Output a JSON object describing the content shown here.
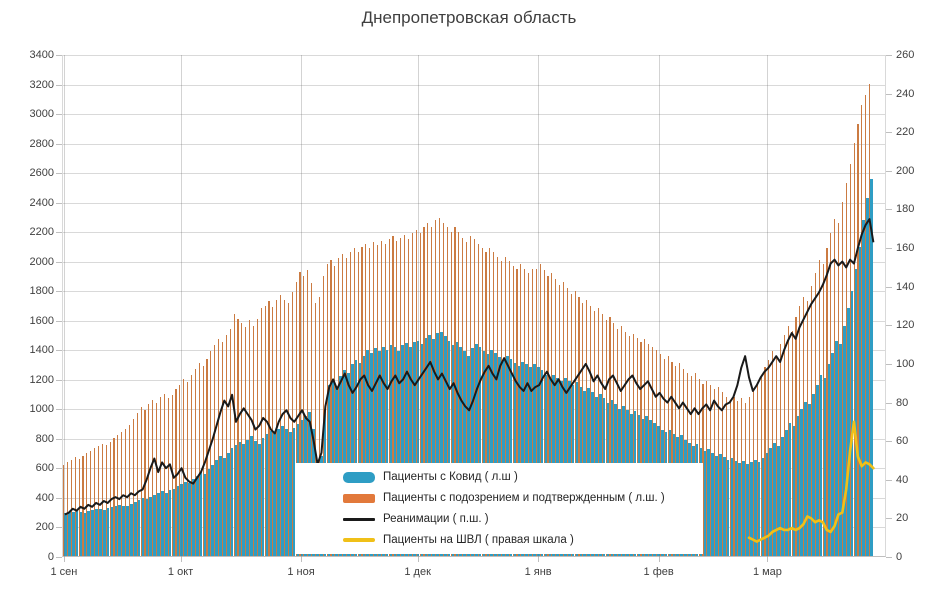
{
  "chart_data": {
    "type": "combo",
    "title": "Днепропетровская область",
    "slots": 212,
    "left_axis": {
      "min": 0,
      "max": 3400,
      "step": 200
    },
    "right_axis": {
      "min": 0,
      "max": 260,
      "step": 20
    },
    "x_ticks": [
      {
        "day": 0,
        "label": "1 сен"
      },
      {
        "day": 30,
        "label": "1 окт"
      },
      {
        "day": 61,
        "label": "1 ноя"
      },
      {
        "day": 91,
        "label": "1 дек"
      },
      {
        "day": 122,
        "label": "1 янв"
      },
      {
        "day": 153,
        "label": "1 фев"
      },
      {
        "day": 181,
        "label": "1 мар"
      }
    ],
    "style": {
      "grid_color": "#d9d9d9",
      "tick_color": "#bfbfbf",
      "axis_text_color": "#404040",
      "month_line_color": "rgba(110,110,110,0.30)"
    },
    "series": [
      {
        "name": "Пациенты с Ковид ( л.ш )",
        "type": "bar",
        "axis": "left",
        "color": "#2e9dc4",
        "start_day": 0,
        "values": [
          292,
          296,
          301,
          305,
          298,
          295,
          308,
          315,
          322,
          318,
          312,
          325,
          333,
          340,
          348,
          342,
          338,
          355,
          368,
          380,
          392,
          385,
          398,
          412,
          425,
          438,
          430,
          445,
          458,
          472,
          490,
          505,
          498,
          520,
          545,
          570,
          560,
          590,
          620,
          650,
          680,
          665,
          700,
          730,
          755,
          775,
          760,
          790,
          815,
          780,
          760,
          800,
          830,
          850,
          835,
          860,
          880,
          865,
          840,
          870,
          895,
          920,
          950,
          975,
          860,
          640,
          680,
          1000,
          1160,
          1190,
          1150,
          1220,
          1265,
          1240,
          1300,
          1330,
          1310,
          1360,
          1400,
          1380,
          1410,
          1390,
          1420,
          1400,
          1430,
          1420,
          1390,
          1430,
          1445,
          1420,
          1450,
          1460,
          1440,
          1480,
          1500,
          1475,
          1515,
          1520,
          1490,
          1460,
          1430,
          1450,
          1420,
          1390,
          1360,
          1410,
          1440,
          1420,
          1390,
          1370,
          1400,
          1380,
          1350,
          1330,
          1360,
          1340,
          1310,
          1290,
          1320,
          1300,
          1280,
          1305,
          1280,
          1260,
          1230,
          1210,
          1230,
          1210,
          1190,
          1210,
          1185,
          1160,
          1180,
          1150,
          1120,
          1140,
          1110,
          1080,
          1100,
          1070,
          1040,
          1060,
          1030,
          1000,
          1020,
          990,
          965,
          985,
          955,
          930,
          950,
          920,
          900,
          880,
          858,
          840,
          855,
          828,
          805,
          820,
          790,
          768,
          748,
          762,
          735,
          712,
          726,
          700,
          682,
          695,
          670,
          655,
          665,
          645,
          630,
          642,
          622,
          635,
          650,
          640,
          665,
          700,
          730,
          765,
          745,
          810,
          855,
          900,
          880,
          950,
          1000,
          1045,
          1030,
          1100,
          1160,
          1230,
          1210,
          1300,
          1380,
          1460,
          1440,
          1560,
          1680,
          1800,
          1950,
          2100,
          2280,
          2430,
          2560
        ]
      },
      {
        "name": "Пациенты с подозрением и подтвержденным ( л.ш. )",
        "type": "thin-bar",
        "axis": "left",
        "color": "#cb7b42",
        "start_day": 0,
        "values": [
          620,
          640,
          655,
          670,
          660,
          680,
          700,
          715,
          730,
          745,
          760,
          750,
          775,
          800,
          820,
          840,
          860,
          890,
          930,
          970,
          1010,
          990,
          1030,
          1060,
          1040,
          1080,
          1100,
          1070,
          1090,
          1130,
          1160,
          1200,
          1180,
          1230,
          1270,
          1310,
          1290,
          1340,
          1390,
          1430,
          1470,
          1450,
          1500,
          1540,
          1640,
          1610,
          1580,
          1555,
          1600,
          1560,
          1610,
          1680,
          1700,
          1730,
          1690,
          1740,
          1770,
          1740,
          1720,
          1790,
          1860,
          1930,
          1900,
          1940,
          1850,
          1720,
          1760,
          1900,
          1980,
          2010,
          1970,
          2020,
          2050,
          2020,
          2060,
          2090,
          2060,
          2100,
          2120,
          2090,
          2130,
          2110,
          2140,
          2120,
          2150,
          2170,
          2140,
          2160,
          2180,
          2150,
          2190,
          2210,
          2190,
          2230,
          2260,
          2230,
          2280,
          2295,
          2260,
          2230,
          2200,
          2230,
          2200,
          2160,
          2130,
          2170,
          2150,
          2120,
          2090,
          2060,
          2090,
          2060,
          2030,
          2000,
          2030,
          2000,
          1970,
          1950,
          1980,
          1950,
          1920,
          1950,
          1950,
          1980,
          1940,
          1900,
          1920,
          1880,
          1840,
          1860,
          1820,
          1780,
          1800,
          1760,
          1720,
          1740,
          1700,
          1660,
          1680,
          1640,
          1600,
          1620,
          1580,
          1540,
          1560,
          1520,
          1490,
          1510,
          1480,
          1450,
          1470,
          1440,
          1415,
          1400,
          1370,
          1340,
          1360,
          1320,
          1290,
          1310,
          1270,
          1240,
          1220,
          1240,
          1200,
          1170,
          1190,
          1160,
          1130,
          1150,
          1110,
          1080,
          1060,
          1080,
          1050,
          1070,
          1040,
          1080,
          1130,
          1170,
          1230,
          1280,
          1330,
          1390,
          1360,
          1440,
          1500,
          1560,
          1530,
          1620,
          1700,
          1760,
          1730,
          1830,
          1920,
          2010,
          1980,
          2090,
          2190,
          2290,
          2260,
          2400,
          2530,
          2660,
          2800,
          2930,
          3060,
          3130,
          3200
        ]
      },
      {
        "name": "Реанимации ( п.ш. )",
        "type": "line",
        "axis": "right",
        "color": "#1a1a1a",
        "start_day": 0,
        "values": [
          22,
          23,
          25,
          24,
          26,
          25,
          27,
          26,
          28,
          27,
          29,
          28,
          30,
          31,
          30,
          32,
          31,
          33,
          32,
          34,
          35,
          40,
          46,
          51,
          44,
          49,
          46,
          48,
          41,
          43,
          46,
          41,
          39,
          38,
          41,
          44,
          49,
          55,
          61,
          68,
          75,
          81,
          78,
          84,
          70,
          74,
          77,
          74,
          71,
          66,
          68,
          72,
          70,
          66,
          64,
          70,
          74,
          76,
          72,
          70,
          73,
          76,
          72,
          70,
          60,
          48,
          54,
          78,
          88,
          92,
          87,
          91,
          95,
          89,
          85,
          88,
          92,
          94,
          89,
          86,
          90,
          94,
          90,
          87,
          91,
          94,
          90,
          92,
          96,
          92,
          89,
          92,
          95,
          98,
          101,
          96,
          92,
          95,
          91,
          87,
          90,
          85,
          81,
          78,
          76,
          81,
          87,
          92,
          96,
          99,
          95,
          92,
          99,
          103,
          99,
          95,
          91,
          88,
          86,
          90,
          86,
          88,
          89,
          93,
          96,
          92,
          89,
          92,
          88,
          85,
          88,
          91,
          94,
          97,
          100,
          96,
          91,
          94,
          90,
          87,
          92,
          94,
          90,
          86,
          89,
          92,
          94,
          90,
          87,
          89,
          91,
          87,
          83,
          85,
          82,
          80,
          83,
          80,
          77,
          80,
          77,
          74,
          77,
          74,
          77,
          79,
          76,
          81,
          78,
          76,
          79,
          80,
          83,
          89,
          98,
          104,
          93,
          86,
          89,
          93,
          96,
          98,
          101,
          104,
          101,
          107,
          112,
          116,
          113,
          119,
          123,
          127,
          131,
          134,
          137,
          141,
          146,
          152,
          154,
          151,
          153,
          150,
          154,
          152,
          160,
          167,
          172,
          175,
          163
        ]
      },
      {
        "name": "Пациенты на ШВЛ ( правая шкала )",
        "type": "line",
        "axis": "right",
        "color": "#f0c018",
        "start_day": 176,
        "values": [
          10,
          9,
          8,
          9,
          10,
          11,
          13,
          14,
          15,
          14,
          14,
          15,
          14,
          15,
          17,
          21,
          20,
          18,
          19,
          18,
          14,
          13,
          16,
          22,
          23,
          35,
          55,
          70,
          52,
          47,
          49,
          48,
          46
        ]
      }
    ]
  },
  "legend": {
    "items": [
      {
        "label": "Пациенты с Ковид ( л.ш )",
        "swatch": "pill",
        "color": "#2e9dc4"
      },
      {
        "label": "Пациенты с подозрением и подтвержденным ( л.ш. )",
        "swatch": "rect",
        "color": "#e2793b"
      },
      {
        "label": "Реанимации ( п.ш. )",
        "swatch": "line",
        "color": "#1a1a1a"
      },
      {
        "label": "Пациенты на ШВЛ ( правая шкала )",
        "swatch": "line-thick",
        "color": "#f0c018"
      }
    ]
  }
}
